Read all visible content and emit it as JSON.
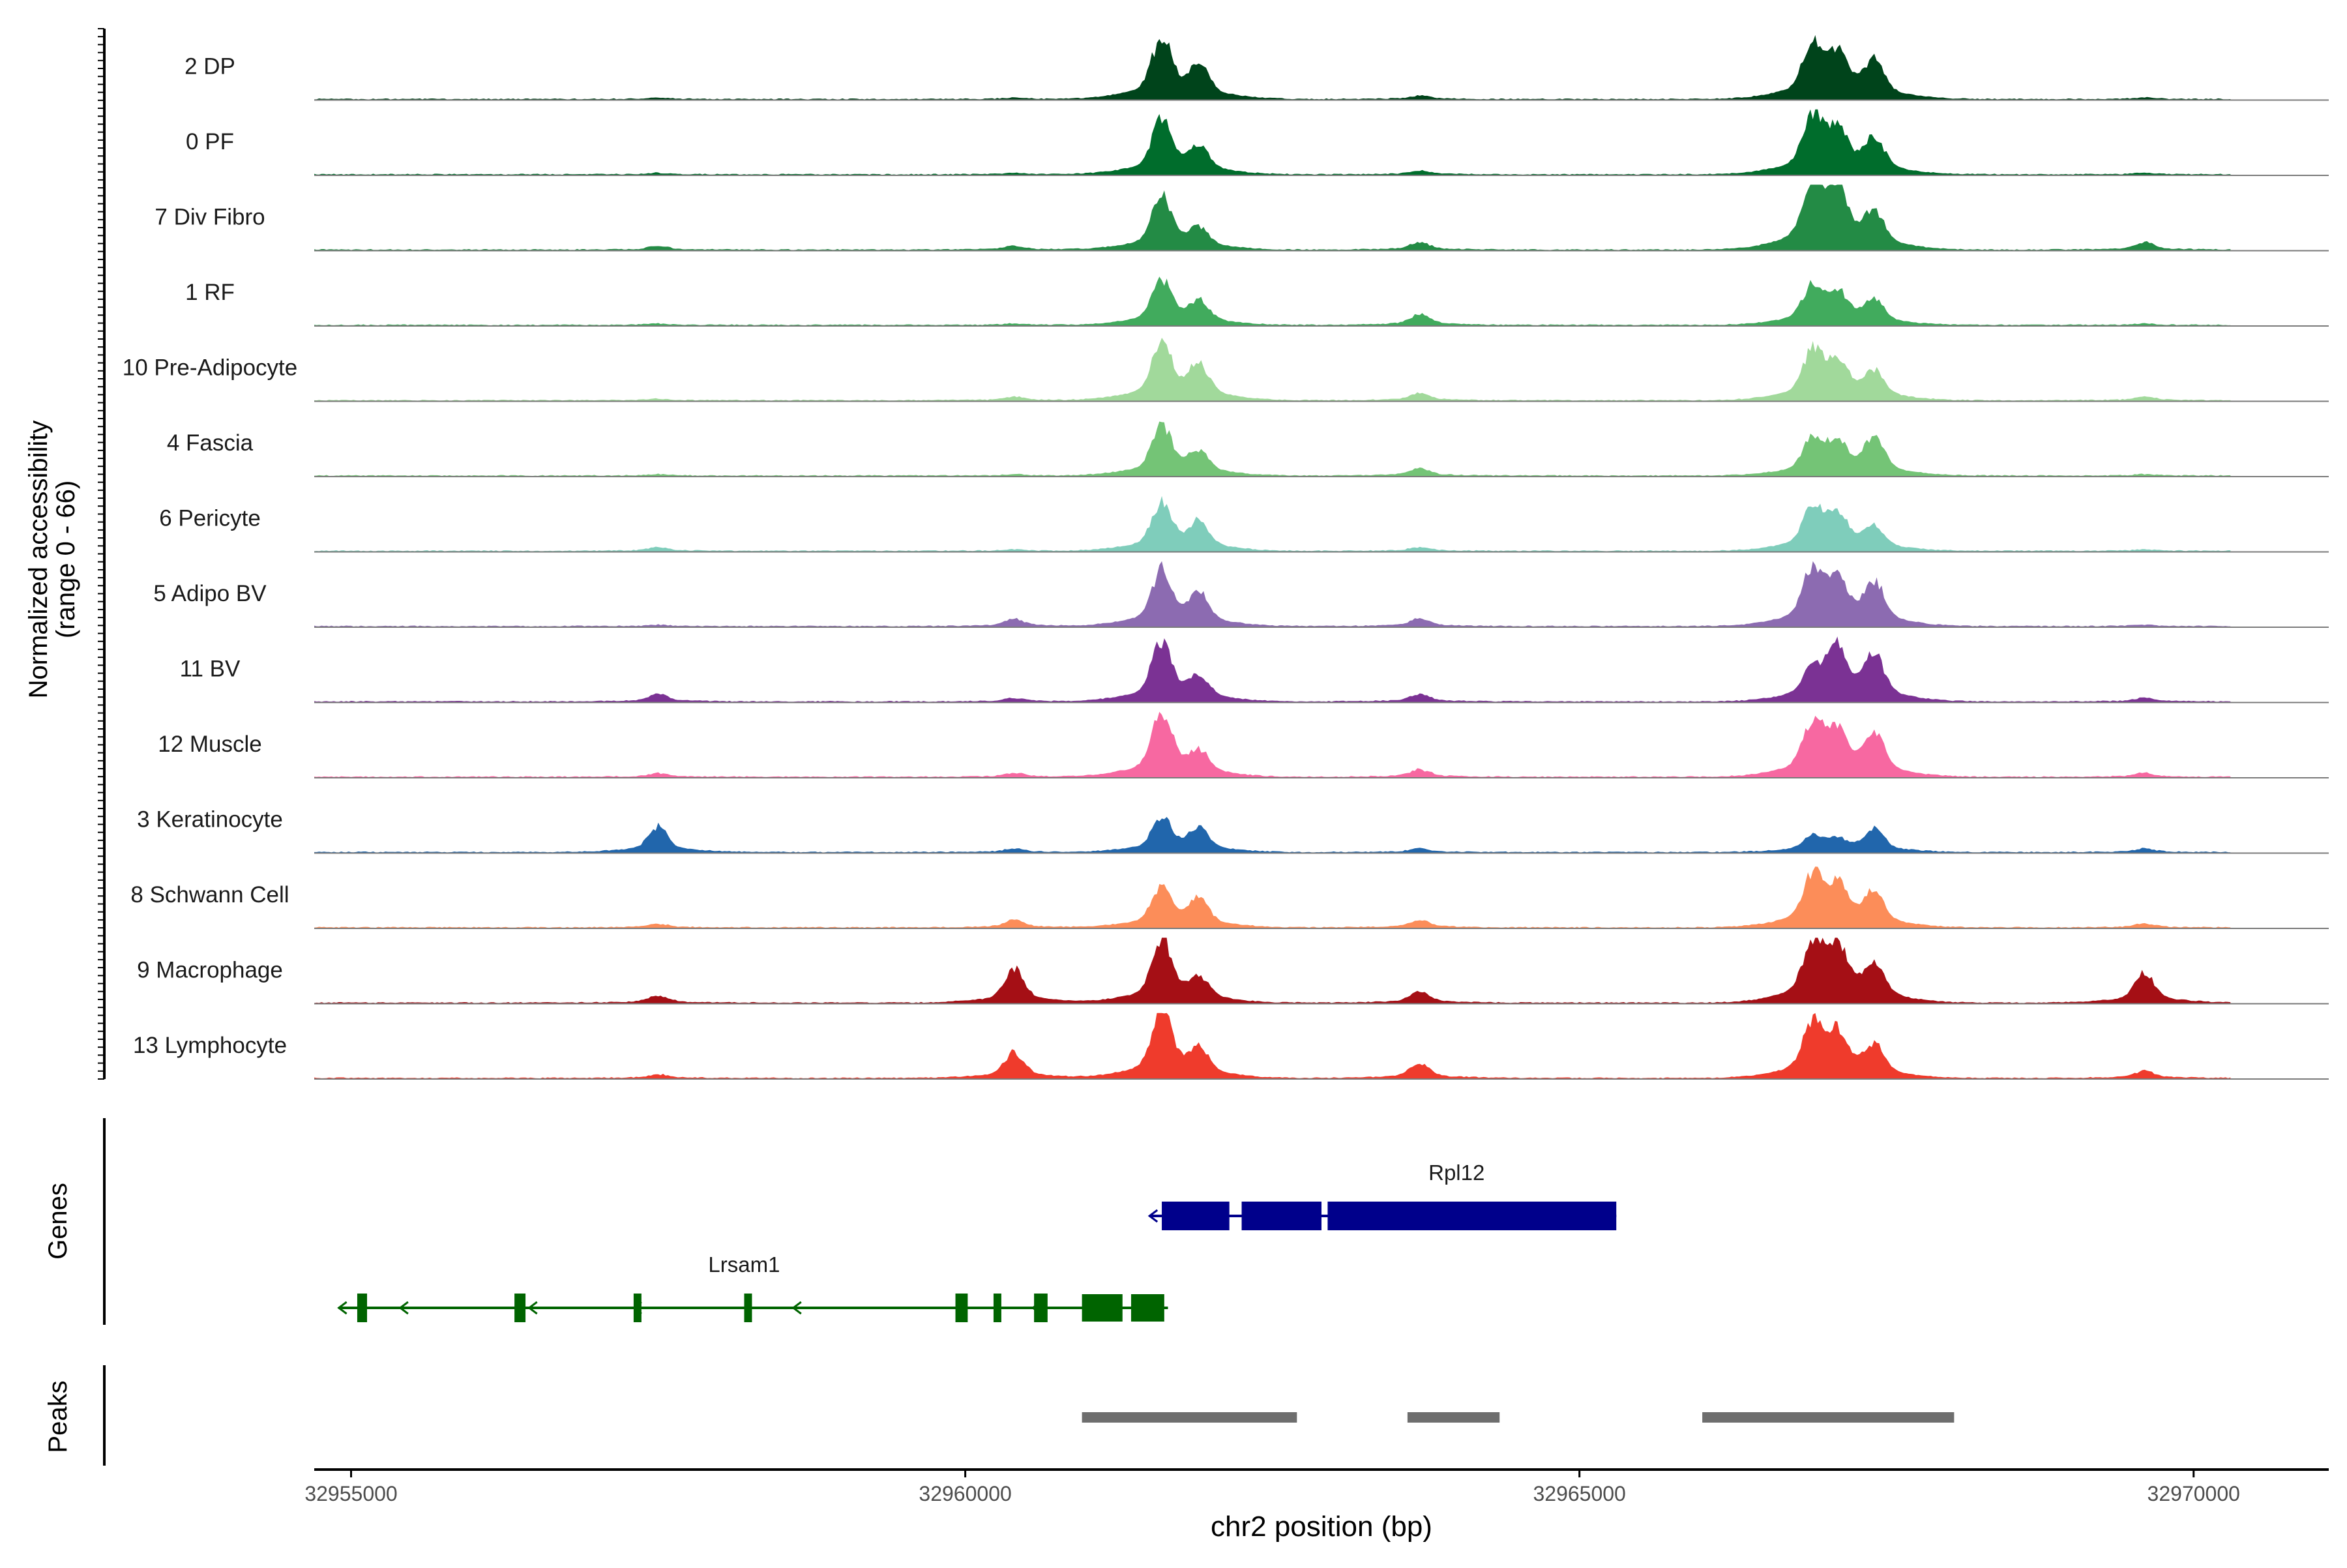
{
  "chart_data": {
    "type": "area",
    "title": "",
    "ylabel_line1": "Normalized accessibility",
    "ylabel_line2": "(range 0 - 66)",
    "xlabel": "chr2 position (bp)",
    "xlim": [
      32954700,
      32971100
    ],
    "xticks": [
      32955000,
      32960000,
      32965000,
      32970000
    ],
    "xtick_labels": [
      "32955000",
      "32960000",
      "32965000",
      "32970000"
    ],
    "ylim": [
      0,
      66
    ],
    "tracks": [
      {
        "name": "2 DP",
        "color": "#00441b"
      },
      {
        "name": "0 PF",
        "color": "#006d2c"
      },
      {
        "name": "7 Div Fibro",
        "color": "#238b45"
      },
      {
        "name": "1 RF",
        "color": "#41ab5d"
      },
      {
        "name": "10 Pre-Adipocyte",
        "color": "#a1d99b"
      },
      {
        "name": "4 Fascia",
        "color": "#74c476"
      },
      {
        "name": "6 Pericyte",
        "color": "#7fcdbb"
      },
      {
        "name": "5 Adipo BV",
        "color": "#8c6bb1"
      },
      {
        "name": "11 BV",
        "color": "#7b3294"
      },
      {
        "name": "12 Muscle",
        "color": "#f768a1"
      },
      {
        "name": "3 Keratinocyte",
        "color": "#2166ac"
      },
      {
        "name": "8 Schwann Cell",
        "color": "#fc8d59"
      },
      {
        "name": "9 Macrophage",
        "color": "#a50f15"
      },
      {
        "name": "13 Lymphocyte",
        "color": "#ef3b2c"
      }
    ],
    "signal_peaks": [
      {
        "pos": 32961600,
        "height": [
          0.82,
          0.72,
          0.72,
          0.58,
          0.78,
          0.66,
          0.65,
          0.75,
          0.8,
          0.9,
          0.45,
          0.55,
          0.85,
          0.95
        ]
      },
      {
        "pos": 32961900,
        "height": [
          0.42,
          0.35,
          0.25,
          0.3,
          0.45,
          0.3,
          0.35,
          0.4,
          0.3,
          0.3,
          0.3,
          0.35,
          0.3,
          0.35
        ]
      },
      {
        "pos": 32966900,
        "height": [
          0.7,
          0.75,
          0.9,
          0.5,
          0.62,
          0.45,
          0.55,
          0.75,
          0.4,
          0.7,
          0.2,
          0.68,
          0.75,
          0.7
        ]
      },
      {
        "pos": 32967100,
        "height": [
          0.55,
          0.55,
          0.75,
          0.4,
          0.5,
          0.4,
          0.45,
          0.55,
          0.68,
          0.55,
          0.15,
          0.5,
          0.7,
          0.55
        ]
      },
      {
        "pos": 32967400,
        "height": [
          0.48,
          0.45,
          0.45,
          0.3,
          0.35,
          0.5,
          0.3,
          0.55,
          0.58,
          0.55,
          0.3,
          0.45,
          0.5,
          0.4
        ]
      },
      {
        "pos": 32960400,
        "height": [
          0.02,
          0.02,
          0.05,
          0.02,
          0.05,
          0.02,
          0.02,
          0.1,
          0.05,
          0.05,
          0.05,
          0.1,
          0.45,
          0.35
        ]
      },
      {
        "pos": 32957500,
        "height": [
          0.02,
          0.02,
          0.05,
          0.02,
          0.02,
          0.02,
          0.05,
          0.02,
          0.1,
          0.05,
          0.35,
          0.05,
          0.1,
          0.05
        ]
      },
      {
        "pos": 32969600,
        "height": [
          0.02,
          0.02,
          0.1,
          0.02,
          0.05,
          0.02,
          0.02,
          0.02,
          0.05,
          0.05,
          0.05,
          0.05,
          0.4,
          0.1
        ]
      },
      {
        "pos": 32963700,
        "height": [
          0.05,
          0.05,
          0.1,
          0.15,
          0.1,
          0.1,
          0.05,
          0.1,
          0.1,
          0.1,
          0.05,
          0.1,
          0.15,
          0.2
        ]
      }
    ],
    "genes": [
      {
        "name": "Rpl12",
        "color": "#00008b",
        "start": 32961500,
        "end": 32965300,
        "strand": "-",
        "exons": [
          [
            32961600,
            32962150
          ],
          [
            32962250,
            32962900
          ],
          [
            32962950,
            32965300
          ]
        ]
      },
      {
        "name": "Lrsam1",
        "color": "#006400",
        "start": 32954900,
        "end": 32961650,
        "strand": "-",
        "exons": [
          [
            32955050,
            32955130
          ],
          [
            32956330,
            32956420
          ],
          [
            32957300,
            32957360
          ],
          [
            32958200,
            32958260
          ],
          [
            32959920,
            32960020
          ],
          [
            32960230,
            32960290
          ],
          [
            32960560,
            32960670
          ],
          [
            32960950,
            32961280
          ],
          [
            32961350,
            32961620
          ]
        ]
      }
    ],
    "peaks": [
      [
        32960950,
        32962700
      ],
      [
        32963600,
        32964350
      ],
      [
        32966000,
        32968050
      ]
    ],
    "panels": {
      "genes_label": "Genes",
      "peaks_label": "Peaks"
    }
  }
}
